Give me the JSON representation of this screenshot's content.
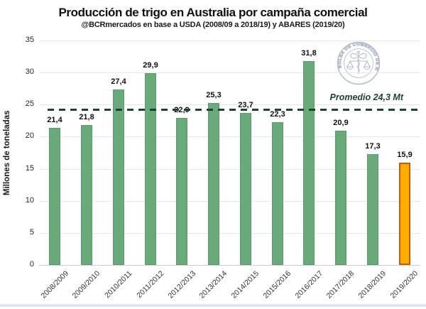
{
  "header": {
    "title": "Producción de trigo en Australia por campaña comercial",
    "subtitle": "@BCRmercados en base a USDA (2008/09 a 2018/19) y ABARES (2019/20)"
  },
  "chart_data": {
    "type": "bar",
    "title": "Producción de trigo en Australia por campaña comercial",
    "subtitle": "@BCRmercados en base a USDA (2008/09 a 2018/19) y ABARES (2019/20)",
    "categories": [
      "2008/2009",
      "2009/2010",
      "2010/2011",
      "2011/2012",
      "2012/2013",
      "2013/2014",
      "2014/2015",
      "2015/2016",
      "2016/2017",
      "2017/2018",
      "2018/2019",
      "2019/2020"
    ],
    "values": [
      21.4,
      21.8,
      27.4,
      29.9,
      22.9,
      25.3,
      23.7,
      22.3,
      31.8,
      20.9,
      17.3,
      15.9
    ],
    "value_labels": [
      "21,4",
      "21,8",
      "27,4",
      "29,9",
      "22,9",
      "25,3",
      "23,7",
      "22,3",
      "31,8",
      "20,9",
      "17,3",
      "15,9"
    ],
    "xlabel": "",
    "ylabel": "Millones de toneladas",
    "ylim": [
      0,
      35
    ],
    "yticks": [
      0,
      5,
      10,
      15,
      20,
      25,
      30,
      35
    ],
    "grid": true,
    "legend": "none",
    "average_line": {
      "value": 24.3,
      "label": "Promedio 24,3 Mt"
    },
    "highlight_index": 11
  },
  "colors": {
    "bar_fill": "#68AA7A",
    "bar_border": "#5D9A6F",
    "highlight_fill": "#FFAE00",
    "highlight_border": "#C45A14",
    "average_line": "#1F4230",
    "gridline": "#E8E8E8",
    "axis_line": "#CFCFCF",
    "watermark": "#A9B2C4",
    "footer_strip": "#DFE4F0"
  },
  "watermark": {
    "ring_text": "BOLSA DE COMERCIO DE ROSARIO"
  }
}
